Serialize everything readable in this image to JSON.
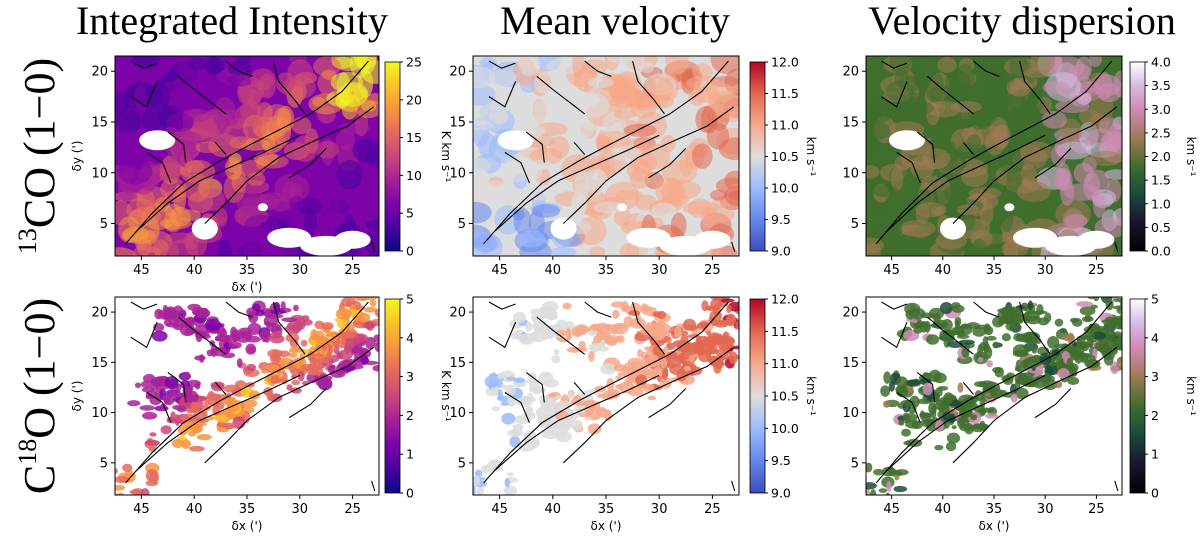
{
  "figure": {
    "column_titles": [
      "Integrated Intensity",
      "Mean velocity",
      "Velocity dispersion"
    ],
    "row_labels": [
      {
        "pre": "",
        "sup": "13",
        "main": "CO (1−0)"
      },
      {
        "pre": "C",
        "sup": "18",
        "main": "O (1−0)"
      }
    ]
  },
  "chart_data": [
    {
      "type": "heatmap",
      "name": "13CO integrated intensity",
      "colormap": "plasma",
      "xlabel": "δx (')",
      "ylabel": "δy (')",
      "xlim": [
        47.5,
        22.5
      ],
      "ylim": [
        1.8,
        21.5
      ],
      "xticks": [
        45,
        40,
        35,
        30,
        25
      ],
      "yticks": [
        5,
        10,
        15,
        20
      ],
      "colorbar": {
        "label": "K km s⁻¹",
        "min": 0,
        "max": 25,
        "ticks": [
          0,
          5,
          10,
          15,
          20,
          25
        ],
        "tick_labels": [
          "0",
          "5",
          "10",
          "15",
          "20",
          "25"
        ]
      }
    },
    {
      "type": "heatmap",
      "name": "13CO mean velocity",
      "colormap": "coolwarm",
      "xlabel": "",
      "ylabel": "",
      "xlim": [
        47.5,
        22.5
      ],
      "ylim": [
        1.8,
        21.5
      ],
      "xticks": [
        45,
        40,
        35,
        30,
        25
      ],
      "yticks": [
        5,
        10,
        15,
        20
      ],
      "colorbar": {
        "label": "km s⁻¹",
        "min": 9.0,
        "max": 12.0,
        "ticks": [
          9.0,
          9.5,
          10.0,
          10.5,
          11.0,
          11.5,
          12.0
        ],
        "tick_labels": [
          "9.0",
          "9.5",
          "10.0",
          "10.5",
          "11.0",
          "11.5",
          "12.0"
        ]
      }
    },
    {
      "type": "heatmap",
      "name": "13CO velocity dispersion",
      "colormap": "cubehelix",
      "xlabel": "",
      "ylabel": "",
      "xlim": [
        47.5,
        22.5
      ],
      "ylim": [
        1.8,
        21.5
      ],
      "xticks": [
        45,
        40,
        35,
        30,
        25
      ],
      "yticks": [
        5,
        10,
        15,
        20
      ],
      "colorbar": {
        "label": "km s⁻¹",
        "min": 0.0,
        "max": 4.0,
        "ticks": [
          0,
          0.5,
          1,
          1.5,
          2,
          2.5,
          3,
          3.5,
          4
        ],
        "tick_labels": [
          "0.0",
          "0.5",
          "1.0",
          "1.5",
          "2.0",
          "2.5",
          "3.0",
          "3.5",
          "4.0"
        ]
      }
    },
    {
      "type": "heatmap",
      "name": "C18O integrated intensity",
      "colormap": "plasma",
      "xlabel": "δx (')",
      "ylabel": "δy (')",
      "xlim": [
        47.5,
        22.5
      ],
      "ylim": [
        1.8,
        21.5
      ],
      "xticks": [
        45,
        40,
        35,
        30,
        25
      ],
      "yticks": [
        5,
        10,
        15,
        20
      ],
      "colorbar": {
        "label": "K km s⁻¹",
        "min": 0,
        "max": 5,
        "ticks": [
          0,
          1,
          2,
          3,
          4,
          5
        ],
        "tick_labels": [
          "0",
          "1",
          "2",
          "3",
          "4",
          "5"
        ]
      }
    },
    {
      "type": "heatmap",
      "name": "C18O mean velocity",
      "colormap": "coolwarm",
      "xlabel": "δx (')",
      "ylabel": "",
      "xlim": [
        47.5,
        22.5
      ],
      "ylim": [
        1.8,
        21.5
      ],
      "xticks": [
        45,
        40,
        35,
        30,
        25
      ],
      "yticks": [
        5,
        10,
        15,
        20
      ],
      "colorbar": {
        "label": "km s⁻¹",
        "min": 9.0,
        "max": 12.0,
        "ticks": [
          9.0,
          9.5,
          10.0,
          10.5,
          11.0,
          11.5,
          12.0
        ],
        "tick_labels": [
          "9.0",
          "9.5",
          "10.0",
          "10.5",
          "11.0",
          "11.5",
          "12.0"
        ]
      }
    },
    {
      "type": "heatmap",
      "name": "C18O velocity dispersion",
      "colormap": "cubehelix",
      "xlabel": "δx (')",
      "ylabel": "",
      "xlim": [
        47.5,
        22.5
      ],
      "ylim": [
        1.8,
        21.5
      ],
      "xticks": [
        45,
        40,
        35,
        30,
        25
      ],
      "yticks": [
        5,
        10,
        15,
        20
      ],
      "colorbar": {
        "label": "km s⁻¹",
        "min": 0,
        "max": 5,
        "ticks": [
          0,
          1,
          2,
          3,
          4,
          5
        ],
        "tick_labels": [
          "0",
          "1",
          "2",
          "3",
          "4",
          "5"
        ]
      }
    }
  ]
}
